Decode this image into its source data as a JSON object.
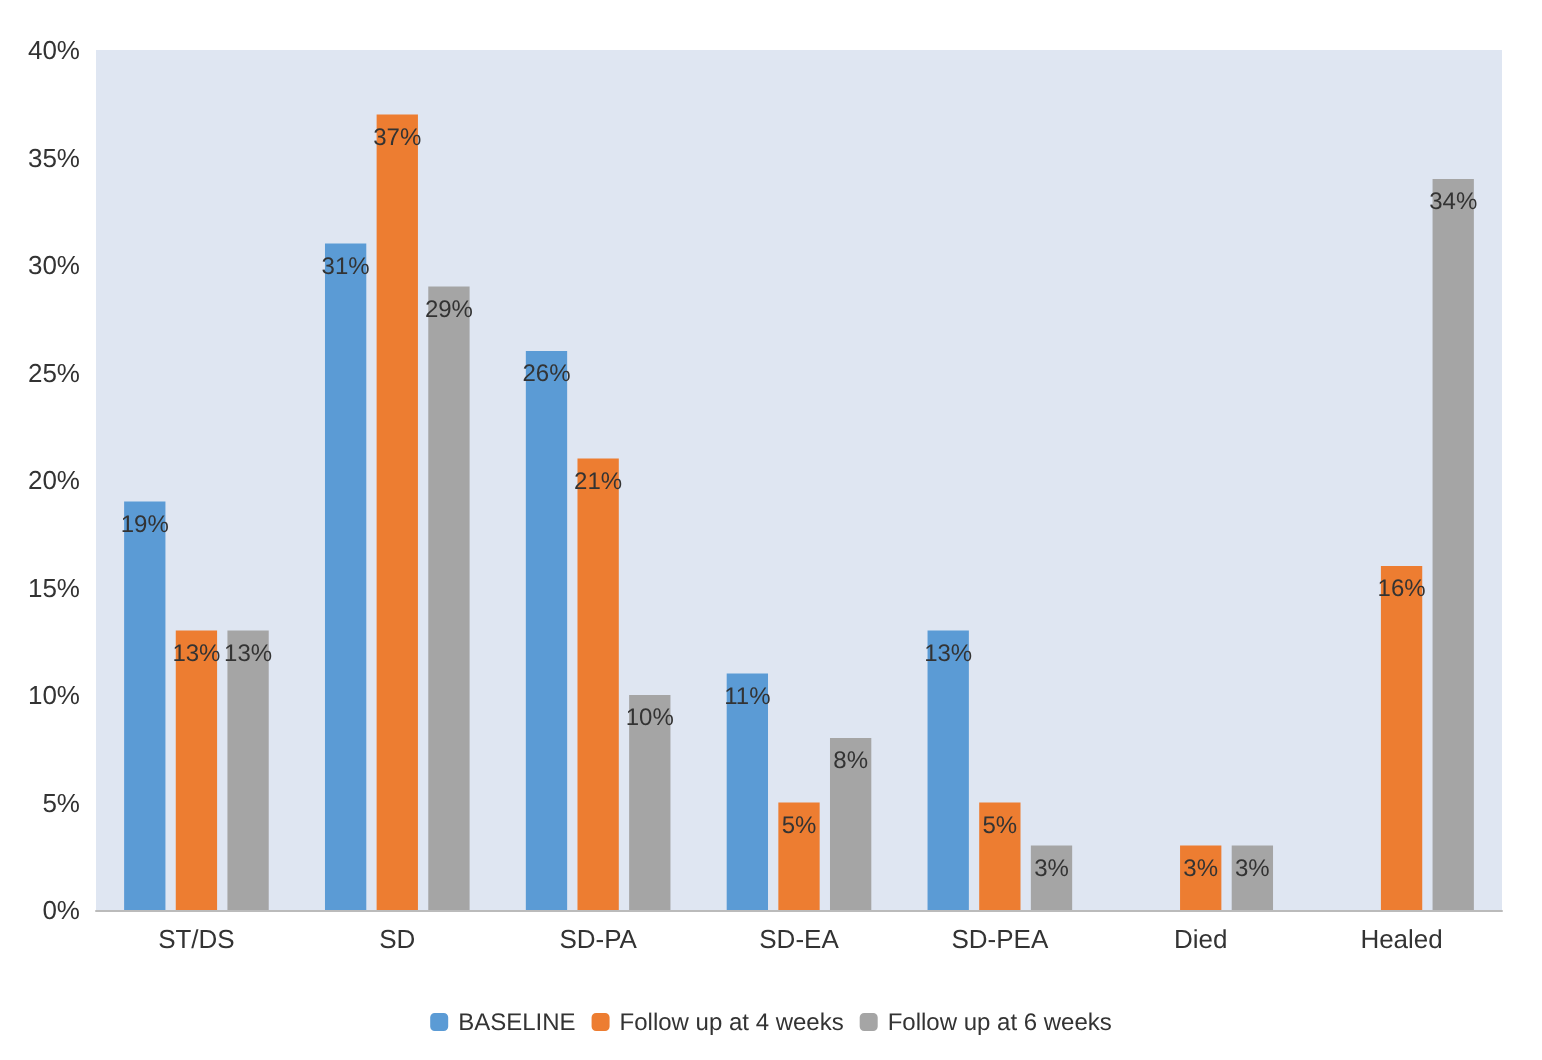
{
  "chart_data": {
    "type": "bar",
    "categories": [
      "ST/DS",
      "SD",
      "SD-PA",
      "SD-EA",
      "SD-PEA",
      "Died",
      "Healed"
    ],
    "series": [
      {
        "name": "BASELINE",
        "color": "#5b9bd5",
        "values": [
          19,
          31,
          26,
          11,
          13,
          null,
          null
        ],
        "value_labels": [
          "19%",
          "31%",
          "26%",
          "11%",
          "13%",
          null,
          null
        ]
      },
      {
        "name": "Follow up at 4 weeks",
        "color": "#ed7d31",
        "values": [
          13,
          37,
          21,
          5,
          5,
          3,
          16
        ],
        "value_labels": [
          "13%",
          "37%",
          "21%",
          "5%",
          "5%",
          "3%",
          "16%"
        ]
      },
      {
        "name": "Follow up at 6 weeks",
        "color": "#a5a5a5",
        "values": [
          13,
          29,
          10,
          8,
          3,
          3,
          34
        ],
        "value_labels": [
          "13%",
          "29%",
          "10%",
          "8%",
          "3%",
          "3%",
          "34%"
        ]
      }
    ],
    "ylim": [
      0,
      40
    ],
    "yticks": [
      {
        "value": 0,
        "label": "0%"
      },
      {
        "value": 5,
        "label": "5%"
      },
      {
        "value": 10,
        "label": "10%"
      },
      {
        "value": 15,
        "label": "15%"
      },
      {
        "value": 20,
        "label": "20%"
      },
      {
        "value": 25,
        "label": "25%"
      },
      {
        "value": 30,
        "label": "30%"
      },
      {
        "value": 35,
        "label": "35%"
      },
      {
        "value": 40,
        "label": "40%"
      }
    ],
    "grid": false,
    "legend": "bottom"
  }
}
